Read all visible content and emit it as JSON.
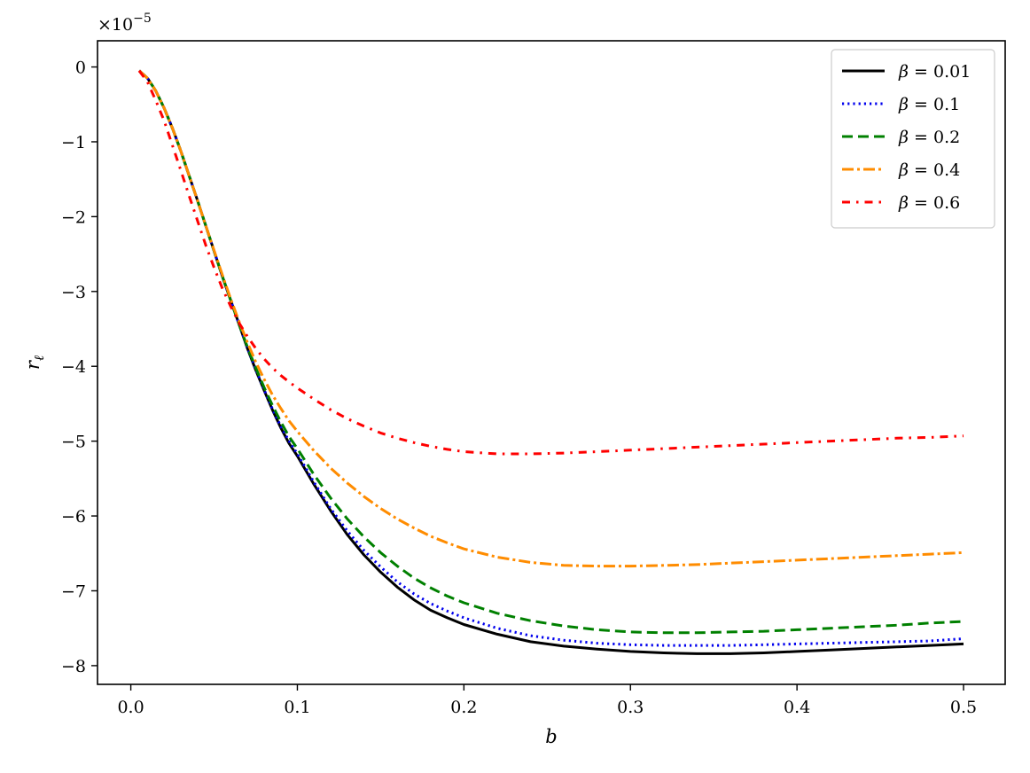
{
  "chart_data": {
    "type": "line",
    "title": "",
    "xlabel": "b",
    "ylabel": "r",
    "ylabel_subscript": "ℓ",
    "offset_text": "×10",
    "offset_exponent": "−5",
    "xlim": [
      -0.02,
      0.525
    ],
    "ylim": [
      -8.25,
      0.35
    ],
    "xticks": [
      0.0,
      0.1,
      0.2,
      0.3,
      0.4,
      0.5
    ],
    "xtick_labels": [
      "0.0",
      "0.1",
      "0.2",
      "0.3",
      "0.4",
      "0.5"
    ],
    "yticks": [
      0,
      -1,
      -2,
      -3,
      -4,
      -5,
      -6,
      -7,
      -8
    ],
    "ytick_labels": [
      "0",
      "−1",
      "−2",
      "−3",
      "−4",
      "−5",
      "−6",
      "−7",
      "−8"
    ],
    "grid": false,
    "legend_position": "top-right",
    "x": [
      0.005,
      0.01,
      0.015,
      0.02,
      0.025,
      0.03,
      0.035,
      0.04,
      0.045,
      0.05,
      0.055,
      0.06,
      0.065,
      0.07,
      0.075,
      0.08,
      0.085,
      0.09,
      0.095,
      0.1,
      0.11,
      0.12,
      0.13,
      0.14,
      0.15,
      0.16,
      0.17,
      0.18,
      0.19,
      0.2,
      0.22,
      0.24,
      0.26,
      0.28,
      0.3,
      0.32,
      0.34,
      0.36,
      0.38,
      0.4,
      0.42,
      0.44,
      0.46,
      0.48,
      0.5
    ],
    "series": [
      {
        "name_symbol": "β",
        "name_value": " = 0.01",
        "color": "#000000",
        "dash": "",
        "values": [
          -0.05,
          -0.15,
          -0.32,
          -0.55,
          -0.82,
          -1.12,
          -1.45,
          -1.78,
          -2.12,
          -2.46,
          -2.8,
          -3.12,
          -3.44,
          -3.76,
          -4.05,
          -4.32,
          -4.58,
          -4.82,
          -5.03,
          -5.2,
          -5.58,
          -5.93,
          -6.25,
          -6.52,
          -6.75,
          -6.95,
          -7.12,
          -7.26,
          -7.36,
          -7.45,
          -7.58,
          -7.68,
          -7.74,
          -7.78,
          -7.81,
          -7.83,
          -7.84,
          -7.84,
          -7.83,
          -7.81,
          -7.79,
          -7.77,
          -7.75,
          -7.73,
          -7.71
        ]
      },
      {
        "name_symbol": "β",
        "name_value": " = 0.1",
        "color": "#0000ee",
        "dash": "2.2 4",
        "values": [
          -0.05,
          -0.15,
          -0.32,
          -0.55,
          -0.82,
          -1.12,
          -1.45,
          -1.78,
          -2.12,
          -2.46,
          -2.8,
          -3.12,
          -3.44,
          -3.75,
          -4.04,
          -4.31,
          -4.57,
          -4.8,
          -5.0,
          -5.17,
          -5.55,
          -5.9,
          -6.2,
          -6.46,
          -6.68,
          -6.88,
          -7.04,
          -7.17,
          -7.27,
          -7.36,
          -7.5,
          -7.6,
          -7.66,
          -7.7,
          -7.72,
          -7.73,
          -7.73,
          -7.73,
          -7.72,
          -7.71,
          -7.7,
          -7.69,
          -7.68,
          -7.67,
          -7.64
        ]
      },
      {
        "name_symbol": "β",
        "name_value": " = 0.2",
        "color": "#008000",
        "dash": "12 6",
        "values": [
          -0.05,
          -0.15,
          -0.32,
          -0.55,
          -0.82,
          -1.12,
          -1.45,
          -1.78,
          -2.12,
          -2.46,
          -2.8,
          -3.12,
          -3.44,
          -3.74,
          -4.02,
          -4.28,
          -4.52,
          -4.74,
          -4.94,
          -5.1,
          -5.45,
          -5.76,
          -6.04,
          -6.28,
          -6.49,
          -6.67,
          -6.83,
          -6.96,
          -7.07,
          -7.16,
          -7.3,
          -7.4,
          -7.47,
          -7.52,
          -7.55,
          -7.56,
          -7.56,
          -7.55,
          -7.54,
          -7.52,
          -7.5,
          -7.48,
          -7.46,
          -7.43,
          -7.41
        ]
      },
      {
        "name_symbol": "β",
        "name_value": " = 0.4",
        "color": "#ff8c00",
        "dash": "13 4 3 4",
        "values": [
          -0.05,
          -0.15,
          -0.32,
          -0.55,
          -0.82,
          -1.12,
          -1.45,
          -1.78,
          -2.12,
          -2.45,
          -2.78,
          -3.1,
          -3.4,
          -3.68,
          -3.94,
          -4.17,
          -4.38,
          -4.56,
          -4.73,
          -4.87,
          -5.13,
          -5.36,
          -5.56,
          -5.74,
          -5.9,
          -6.04,
          -6.16,
          -6.27,
          -6.36,
          -6.44,
          -6.55,
          -6.62,
          -6.66,
          -6.67,
          -6.67,
          -6.66,
          -6.65,
          -6.63,
          -6.61,
          -6.59,
          -6.57,
          -6.55,
          -6.53,
          -6.51,
          -6.49
        ]
      },
      {
        "name_symbol": "β",
        "name_value": " = 0.6",
        "color": "#ff0000",
        "dash": "9 7 2.5 7",
        "values": [
          -0.05,
          -0.2,
          -0.45,
          -0.72,
          -1.05,
          -1.38,
          -1.72,
          -2.05,
          -2.38,
          -2.68,
          -2.96,
          -3.2,
          -3.42,
          -3.6,
          -3.76,
          -3.9,
          -4.02,
          -4.12,
          -4.21,
          -4.29,
          -4.44,
          -4.58,
          -4.7,
          -4.8,
          -4.89,
          -4.96,
          -5.02,
          -5.07,
          -5.11,
          -5.14,
          -5.17,
          -5.17,
          -5.16,
          -5.14,
          -5.12,
          -5.1,
          -5.08,
          -5.06,
          -5.04,
          -5.02,
          -5.0,
          -4.98,
          -4.96,
          -4.95,
          -4.93
        ]
      }
    ]
  }
}
